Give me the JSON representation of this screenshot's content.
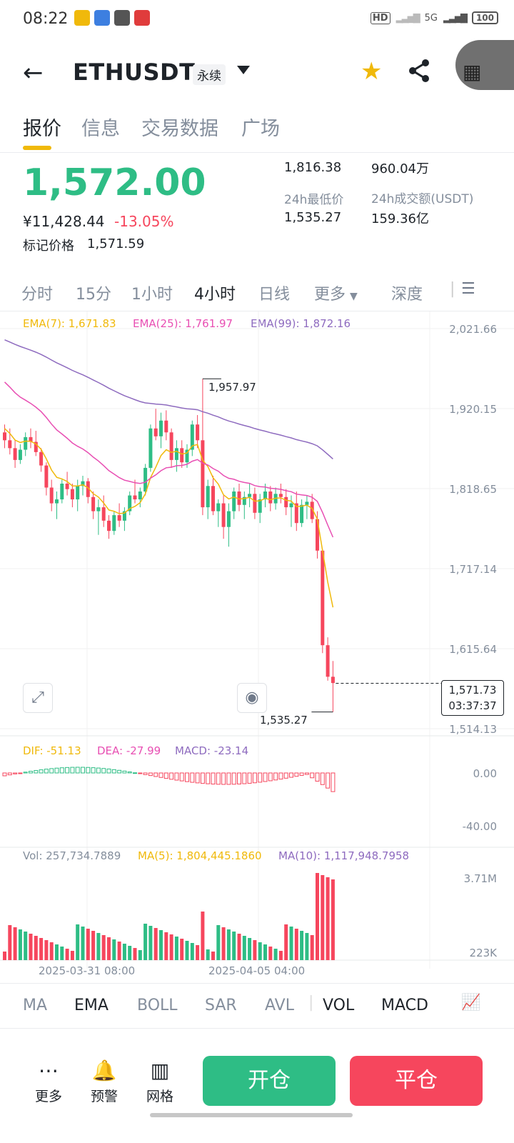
{
  "status": {
    "time": "08:22",
    "hd": "HD",
    "net": "5G",
    "battery": "100"
  },
  "header": {
    "back_glyph": "←",
    "symbol": "ETHUSDT",
    "perp": "永续",
    "star_glyph": "★",
    "share_glyph": "⋖",
    "grid_glyph": "▦"
  },
  "tabs": [
    "报价",
    "信息",
    "交易数据",
    "广场"
  ],
  "price": {
    "last": "1,572.00",
    "cny": "¥11,428.44",
    "change_pct": "-13.05%",
    "mark_label": "标记价格",
    "mark_value": "1,571.59"
  },
  "stats": {
    "high_value": "1,816.38",
    "vol_value": "960.04万",
    "low_label": "24h最低价",
    "low_value": "1,535.27",
    "turnover_label": "24h成交额(USDT)",
    "turnover_value": "159.36亿"
  },
  "timeframes": [
    "分时",
    "15分",
    "1小时",
    "4小时",
    "日线",
    "更多",
    "深度"
  ],
  "ema_legend": {
    "ema7": "EMA(7): 1,671.83",
    "ema25": "EMA(25): 1,761.97",
    "ema99": "EMA(99): 1,872.16"
  },
  "price_axis": [
    "2,021.66",
    "1,920.15",
    "1,818.65",
    "1,717.14",
    "1,615.64",
    "1,514.13"
  ],
  "annotations": {
    "high": "1,957.97",
    "low": "1,535.27"
  },
  "current_box": {
    "price": "1,571.73",
    "countdown": "03:37:37"
  },
  "macd_legend": {
    "dif": "DIF: -51.13",
    "dea": "DEA: -27.99",
    "macd": "MACD: -23.14"
  },
  "macd_axis": [
    "0.00",
    "-40.00"
  ],
  "vol_legend": {
    "vol": "Vol: 257,734.7889",
    "ma5": "MA(5): 1,804,445.1860",
    "ma10": "MA(10): 1,117,948.7958"
  },
  "vol_axis": [
    "3.71M",
    "223K"
  ],
  "time_axis": [
    "2025-03-31 08:00",
    "2025-04-05 04:00"
  ],
  "indicators": [
    "MA",
    "EMA",
    "BOLL",
    "SAR",
    "AVL",
    "VOL",
    "MACD"
  ],
  "bottom": {
    "more": "更多",
    "alert": "预警",
    "grid": "网格",
    "open": "开仓",
    "close": "平仓"
  },
  "colors": {
    "up": "#2ebd85",
    "down": "#f6465d",
    "ema7": "#f0b90b",
    "ema25": "#e84fb3",
    "ema99": "#8e6bbf",
    "accent": "#f0b90b"
  },
  "chart_data": {
    "type": "candlestick",
    "interval": "4h",
    "y_range": [
      1514.13,
      2021.66
    ],
    "high_marker": 1957.97,
    "low_marker": 1535.27,
    "last_price": 1571.73,
    "candles": [
      [
        1890,
        1900,
        1870,
        1880
      ],
      [
        1880,
        1895,
        1862,
        1870
      ],
      [
        1870,
        1880,
        1845,
        1855
      ],
      [
        1855,
        1875,
        1850,
        1868
      ],
      [
        1868,
        1890,
        1860,
        1884
      ],
      [
        1884,
        1895,
        1870,
        1878
      ],
      [
        1878,
        1892,
        1860,
        1865
      ],
      [
        1865,
        1870,
        1840,
        1848
      ],
      [
        1848,
        1852,
        1810,
        1820
      ],
      [
        1820,
        1830,
        1790,
        1800
      ],
      [
        1800,
        1815,
        1780,
        1805
      ],
      [
        1805,
        1830,
        1800,
        1825
      ],
      [
        1825,
        1840,
        1810,
        1818
      ],
      [
        1818,
        1825,
        1795,
        1805
      ],
      [
        1805,
        1830,
        1790,
        1822
      ],
      [
        1822,
        1835,
        1810,
        1828
      ],
      [
        1828,
        1832,
        1800,
        1808
      ],
      [
        1808,
        1815,
        1780,
        1790
      ],
      [
        1790,
        1805,
        1760,
        1795
      ],
      [
        1795,
        1810,
        1770,
        1778
      ],
      [
        1778,
        1785,
        1755,
        1765
      ],
      [
        1765,
        1790,
        1760,
        1785
      ],
      [
        1785,
        1800,
        1770,
        1778
      ],
      [
        1778,
        1795,
        1765,
        1790
      ],
      [
        1790,
        1815,
        1785,
        1810
      ],
      [
        1810,
        1830,
        1800,
        1805
      ],
      [
        1805,
        1820,
        1795,
        1815
      ],
      [
        1815,
        1850,
        1810,
        1845
      ],
      [
        1845,
        1900,
        1840,
        1895
      ],
      [
        1895,
        1920,
        1880,
        1885
      ],
      [
        1885,
        1915,
        1870,
        1905
      ],
      [
        1905,
        1918,
        1880,
        1890
      ],
      [
        1890,
        1895,
        1845,
        1855
      ],
      [
        1855,
        1880,
        1840,
        1870
      ],
      [
        1870,
        1880,
        1845,
        1852
      ],
      [
        1852,
        1875,
        1845,
        1868
      ],
      [
        1868,
        1905,
        1860,
        1900
      ],
      [
        1900,
        1912,
        1870,
        1880
      ],
      [
        1880,
        1957.97,
        1785,
        1795
      ],
      [
        1795,
        1830,
        1780,
        1822
      ],
      [
        1822,
        1835,
        1785,
        1790
      ],
      [
        1790,
        1805,
        1770,
        1800
      ],
      [
        1800,
        1810,
        1755,
        1770
      ],
      [
        1770,
        1800,
        1745,
        1790
      ],
      [
        1790,
        1820,
        1780,
        1815
      ],
      [
        1815,
        1825,
        1790,
        1798
      ],
      [
        1798,
        1815,
        1780,
        1808
      ],
      [
        1808,
        1825,
        1795,
        1812
      ],
      [
        1812,
        1820,
        1780,
        1788
      ],
      [
        1788,
        1812,
        1775,
        1805
      ],
      [
        1805,
        1825,
        1795,
        1815
      ],
      [
        1815,
        1822,
        1790,
        1800
      ],
      [
        1800,
        1820,
        1792,
        1812
      ],
      [
        1812,
        1825,
        1800,
        1808
      ],
      [
        1808,
        1818,
        1785,
        1795
      ],
      [
        1795,
        1810,
        1770,
        1800
      ],
      [
        1800,
        1815,
        1765,
        1775
      ],
      [
        1775,
        1805,
        1770,
        1798
      ],
      [
        1798,
        1810,
        1780,
        1802
      ],
      [
        1802,
        1812,
        1775,
        1780
      ],
      [
        1780,
        1790,
        1730,
        1740
      ],
      [
        1740,
        1742,
        1610,
        1620
      ],
      [
        1620,
        1630,
        1575,
        1580
      ],
      [
        1580,
        1600,
        1535.27,
        1572
      ]
    ],
    "ema7_end": 1671.83,
    "ema25_end": 1761.97,
    "ema99_end": 1872.16
  }
}
